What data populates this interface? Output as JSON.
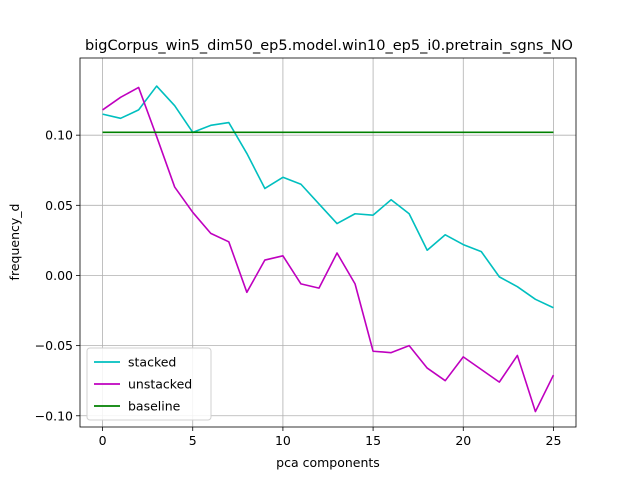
{
  "chart_data": {
    "type": "line",
    "title": "bigCorpus_win5_dim50_ep5.model.win10_ep5_i0.pretrain_sgns_NO",
    "xlabel": "pca components",
    "ylabel": "frequency_d",
    "xlim": [
      -1.25,
      26.25
    ],
    "ylim": [
      -0.108,
      0.155
    ],
    "xticks": [
      0,
      5,
      10,
      15,
      20,
      25
    ],
    "xtick_labels": [
      "0",
      "5",
      "10",
      "15",
      "20",
      "25"
    ],
    "yticks": [
      -0.1,
      -0.05,
      0.0,
      0.05,
      0.1
    ],
    "ytick_labels": [
      "−0.10",
      "−0.05",
      "0.00",
      "0.05",
      "0.10"
    ],
    "grid": true,
    "legend": "lower-left",
    "x": [
      0,
      1,
      2,
      3,
      4,
      5,
      6,
      7,
      8,
      9,
      10,
      11,
      12,
      13,
      14,
      15,
      16,
      17,
      18,
      19,
      20,
      21,
      22,
      23,
      24,
      25
    ],
    "series": [
      {
        "name": "stacked",
        "color": "#00bfbf",
        "values": [
          0.115,
          0.112,
          0.118,
          0.135,
          0.121,
          0.102,
          0.107,
          0.109,
          0.087,
          0.062,
          0.07,
          0.065,
          0.051,
          0.037,
          0.044,
          0.043,
          0.054,
          0.044,
          0.018,
          0.029,
          0.022,
          0.017,
          -0.001,
          -0.008,
          -0.017,
          -0.023
        ]
      },
      {
        "name": "unstacked",
        "color": "#bf00bf",
        "values": [
          0.118,
          0.127,
          0.134,
          0.099,
          0.063,
          0.045,
          0.03,
          0.024,
          -0.012,
          0.011,
          0.014,
          -0.006,
          -0.009,
          0.016,
          -0.006,
          -0.054,
          -0.055,
          -0.05,
          -0.066,
          -0.075,
          -0.058,
          -0.067,
          -0.076,
          -0.057,
          -0.097,
          -0.071
        ]
      },
      {
        "name": "baseline",
        "color": "#008000",
        "values": [
          0.102,
          0.102,
          0.102,
          0.102,
          0.102,
          0.102,
          0.102,
          0.102,
          0.102,
          0.102,
          0.102,
          0.102,
          0.102,
          0.102,
          0.102,
          0.102,
          0.102,
          0.102,
          0.102,
          0.102,
          0.102,
          0.102,
          0.102,
          0.102,
          0.102,
          0.102
        ]
      }
    ]
  }
}
